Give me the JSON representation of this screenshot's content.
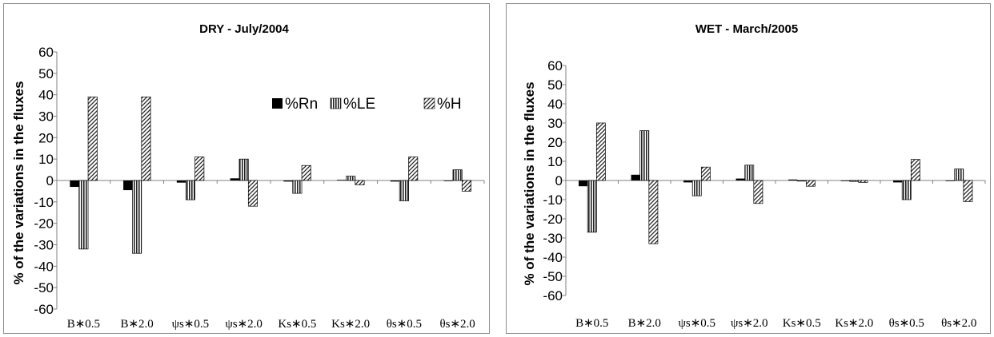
{
  "chart_data": [
    {
      "type": "bar",
      "title": "DRY - July/2004",
      "ylabel": "% of the variations in the fluxes",
      "xlabel": "",
      "ylim": [
        -60,
        60
      ],
      "yticks": [
        "60",
        "50",
        "40",
        "30",
        "20",
        "10",
        "0",
        "-10",
        "-20",
        "-30",
        "-40",
        "-50",
        "-60"
      ],
      "categories": [
        "B∗0.5",
        "B∗2.0",
        "ψs∗0.5",
        "ψs∗2.0",
        "Ks∗0.5",
        "Ks∗2.0",
        "θs∗0.5",
        "θs∗2.0"
      ],
      "series": [
        {
          "name": "%Rn",
          "values": [
            -3,
            -4.5,
            -1,
            1,
            -0.5,
            0.3,
            -0.5,
            -0.3
          ]
        },
        {
          "name": "%LE",
          "values": [
            -32,
            -34,
            -9,
            10,
            -6,
            2,
            -9.5,
            5
          ]
        },
        {
          "name": "%H",
          "values": [
            39,
            39,
            11,
            -12,
            7,
            -2,
            11,
            -5
          ]
        }
      ],
      "legend": "top-right",
      "grid": false
    },
    {
      "type": "bar",
      "title": "WET - March/2005",
      "ylabel": "% of the variations in the fluxes",
      "xlabel": "",
      "ylim": [
        -60,
        60
      ],
      "yticks": [
        "60",
        "50",
        "40",
        "30",
        "20",
        "10",
        "0",
        "-10",
        "-20",
        "-30",
        "-40",
        "-50",
        "-60"
      ],
      "categories": [
        "B∗0.5",
        "B∗2.0",
        "ψs∗0.5",
        "ψs∗2.0",
        "Ks∗0.5",
        "Ks∗2.0",
        "θs∗0.5",
        "θs∗2.0"
      ],
      "series": [
        {
          "name": "%Rn",
          "values": [
            -3,
            3,
            -1,
            1,
            0.5,
            0,
            -1,
            0
          ]
        },
        {
          "name": "%LE",
          "values": [
            -27,
            26,
            -8,
            8,
            0,
            -0.5,
            -10,
            6
          ]
        },
        {
          "name": "%H",
          "values": [
            30,
            -33,
            7,
            -12,
            -3,
            -1,
            11,
            -11
          ]
        }
      ],
      "legend": "none",
      "grid": false
    }
  ],
  "colors": {
    "rn": "#000000",
    "le": "#808080",
    "h": "#a0a0a0",
    "axis": "#808080"
  }
}
